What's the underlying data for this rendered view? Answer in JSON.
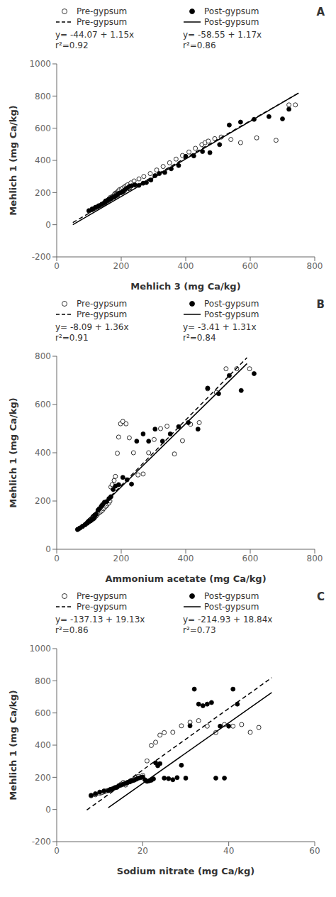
{
  "chart_data": [
    {
      "type": "scatter",
      "title": "A",
      "x_label": "Mehlich 3 (mg Ca/kg)",
      "y_label": "Mehlich 1 (mg Ca/kg)",
      "xlim": [
        0,
        800
      ],
      "ylim": [
        -200,
        1000
      ],
      "xticks": [
        0,
        200,
        400,
        600,
        800
      ],
      "yticks": [
        -200,
        0,
        200,
        400,
        600,
        800,
        1000
      ],
      "grid": false,
      "legend": "top",
      "annotations": [
        "y= -44.07 + 1.15x",
        "r²=0.92",
        "y= -58.55 + 1.17x",
        "r²=0.86"
      ],
      "series": [
        {
          "name": "Pre-gypsum",
          "type": "scatter",
          "marker": "open circle",
          "color": "black",
          "x": [
            100,
            110,
            115,
            120,
            125,
            130,
            135,
            140,
            145,
            150,
            150,
            155,
            155,
            160,
            160,
            162,
            165,
            165,
            170,
            172,
            175,
            178,
            180,
            180,
            182,
            185,
            188,
            190,
            192,
            195,
            200,
            205,
            210,
            215,
            220,
            230,
            240,
            255,
            270,
            290,
            310,
            330,
            350,
            370,
            390,
            410,
            430,
            450,
            460,
            470,
            490,
            510,
            540,
            570,
            620,
            680,
            720,
            740
          ],
          "values": [
            85,
            95,
            100,
            105,
            110,
            115,
            120,
            125,
            130,
            135,
            140,
            142,
            148,
            150,
            155,
            158,
            162,
            168,
            170,
            175,
            178,
            182,
            188,
            192,
            195,
            198,
            202,
            206,
            212,
            218,
            222,
            228,
            235,
            242,
            248,
            260,
            272,
            285,
            300,
            318,
            340,
            362,
            385,
            408,
            430,
            452,
            475,
            498,
            510,
            520,
            535,
            545,
            530,
            510,
            540,
            525,
            745,
            745
          ]
        },
        {
          "name": "Pre-gypsum",
          "type": "line",
          "line_style": "dashed",
          "color": "black",
          "x": [
            50,
            750
          ],
          "values": [
            13.43,
            818.43
          ]
        },
        {
          "name": "Post-gypsum",
          "type": "scatter",
          "marker": "filled circle",
          "color": "black",
          "x": [
            100,
            110,
            120,
            130,
            140,
            148,
            152,
            158,
            162,
            168,
            172,
            178,
            182,
            188,
            192,
            198,
            205,
            212,
            218,
            225,
            232,
            242,
            255,
            268,
            278,
            292,
            305,
            318,
            335,
            355,
            378,
            400,
            425,
            452,
            475,
            505,
            535,
            570,
            612,
            658,
            700,
            720
          ],
          "values": [
            88,
            98,
            108,
            118,
            128,
            138,
            148,
            152,
            158,
            162,
            168,
            172,
            178,
            188,
            195,
            198,
            208,
            218,
            228,
            238,
            242,
            248,
            245,
            258,
            262,
            278,
            305,
            318,
            325,
            348,
            368,
            425,
            428,
            455,
            448,
            498,
            620,
            638,
            655,
            672,
            658,
            718
          ]
        },
        {
          "name": "Post-gypsum",
          "type": "line",
          "line_style": "solid",
          "color": "black",
          "x": [
            50,
            750
          ],
          "values": [
            -0.05,
            818.95
          ]
        }
      ]
    },
    {
      "type": "scatter",
      "title": "B",
      "x_label": "Ammonium acetate (mg Ca/kg)",
      "y_label": "Mehlich 1 (mg Ca/kg)",
      "xlim": [
        0,
        800
      ],
      "ylim": [
        0,
        800
      ],
      "xticks": [
        0,
        200,
        400,
        600,
        800
      ],
      "yticks": [
        0,
        200,
        400,
        600,
        800
      ],
      "grid": false,
      "legend": "top",
      "annotations": [
        "y= -8.09 + 1.36x",
        "r²=0.91",
        "y= -3.41 + 1.31x",
        "r²=0.84"
      ],
      "series": [
        {
          "name": "Pre-gypsum",
          "type": "scatter",
          "marker": "open circle",
          "color": "black",
          "x": [
            65,
            72,
            80,
            88,
            95,
            100,
            105,
            110,
            115,
            118,
            122,
            125,
            128,
            132,
            135,
            138,
            142,
            145,
            148,
            152,
            155,
            158,
            162,
            165,
            168,
            172,
            178,
            182,
            188,
            192,
            198,
            205,
            215,
            225,
            238,
            252,
            268,
            285,
            302,
            322,
            342,
            365,
            390,
            415,
            442,
            468,
            495,
            525,
            558,
            598
          ],
          "values": [
            82,
            88,
            95,
            102,
            110,
            115,
            118,
            122,
            128,
            132,
            138,
            142,
            148,
            152,
            155,
            158,
            162,
            168,
            172,
            178,
            182,
            188,
            192,
            200,
            258,
            268,
            285,
            302,
            398,
            465,
            520,
            530,
            520,
            462,
            400,
            308,
            312,
            400,
            455,
            500,
            510,
            395,
            450,
            518,
            525,
            665,
            650,
            748,
            748,
            748
          ]
        },
        {
          "name": "Pre-gypsum",
          "type": "line",
          "line_style": "dashed",
          "color": "black",
          "x": [
            60,
            590
          ],
          "values": [
            73.51,
            794.31
          ]
        },
        {
          "name": "Post-gypsum",
          "type": "scatter",
          "marker": "filled circle",
          "color": "black",
          "x": [
            65,
            72,
            80,
            88,
            95,
            100,
            105,
            110,
            115,
            118,
            122,
            128,
            132,
            138,
            142,
            148,
            155,
            162,
            168,
            175,
            182,
            192,
            205,
            218,
            232,
            248,
            268,
            285,
            305,
            328,
            352,
            378,
            408,
            438,
            468,
            502,
            535,
            572,
            612
          ],
          "values": [
            82,
            88,
            95,
            102,
            108,
            115,
            118,
            125,
            128,
            138,
            145,
            162,
            168,
            178,
            185,
            195,
            198,
            210,
            218,
            248,
            262,
            268,
            298,
            288,
            270,
            448,
            478,
            448,
            498,
            448,
            478,
            508,
            525,
            498,
            668,
            645,
            720,
            658,
            728
          ]
        },
        {
          "name": "Post-gypsum",
          "type": "line",
          "line_style": "solid",
          "color": "black",
          "x": [
            60,
            590
          ],
          "values": [
            75.19,
            769.49
          ]
        }
      ]
    },
    {
      "type": "scatter",
      "title": "C",
      "x_label": "Sodium nitrate (mg Ca/kg)",
      "y_label": "Mehlich 1 (mg Ca/kg)",
      "xlim": [
        0,
        60
      ],
      "ylim": [
        -200,
        1000
      ],
      "xticks": [
        0,
        20,
        40,
        60
      ],
      "yticks": [
        -200,
        0,
        200,
        400,
        600,
        800,
        1000
      ],
      "grid": false,
      "legend": "top",
      "annotations": [
        "y= -137.13 + 19.13x",
        "r²=0.86",
        "y= -214.93 + 18.84x",
        "r²=0.73"
      ],
      "series": [
        {
          "name": "Pre-gypsum",
          "type": "scatter",
          "marker": "open circle",
          "color": "black",
          "x": [
            8,
            9,
            10,
            10.5,
            11,
            11.5,
            12,
            12.5,
            13,
            13.5,
            14,
            14.5,
            15,
            15.5,
            16,
            16.5,
            17,
            17.5,
            18,
            18.5,
            19,
            20,
            21,
            22,
            23,
            24,
            25,
            27,
            29,
            31,
            33,
            35,
            37,
            39,
            41,
            43,
            45,
            47
          ],
          "values": [
            85,
            92,
            100,
            105,
            110,
            115,
            118,
            122,
            128,
            135,
            140,
            148,
            158,
            168,
            152,
            168,
            172,
            182,
            188,
            198,
            205,
            212,
            302,
            398,
            418,
            462,
            478,
            480,
            520,
            542,
            552,
            518,
            478,
            528,
            518,
            528,
            480,
            510
          ]
        },
        {
          "name": "Pre-gypsum",
          "type": "line",
          "line_style": "dashed",
          "color": "black",
          "x": [
            7,
            50
          ],
          "values": [
            -3.22,
            819.37
          ]
        },
        {
          "name": "Post-gypsum",
          "type": "scatter",
          "marker": "filled circle",
          "color": "black",
          "x": [
            8,
            9,
            10,
            11,
            12,
            12.5,
            13,
            13.5,
            14,
            14.5,
            15,
            15.5,
            16,
            16.5,
            17,
            17.5,
            18,
            18.5,
            19,
            19.5,
            20,
            20.5,
            21,
            21.5,
            22,
            22.5,
            23,
            23.5,
            24,
            25,
            26,
            27,
            28,
            29,
            30,
            31,
            32,
            33,
            34,
            35,
            36,
            37,
            38,
            39,
            40,
            41,
            42
          ],
          "values": [
            88,
            98,
            108,
            115,
            118,
            125,
            128,
            135,
            138,
            148,
            152,
            158,
            162,
            168,
            172,
            178,
            182,
            188,
            195,
            198,
            202,
            185,
            175,
            178,
            182,
            190,
            290,
            272,
            285,
            195,
            192,
            185,
            198,
            275,
            195,
            520,
            748,
            655,
            645,
            655,
            665,
            195,
            518,
            195,
            518,
            748,
            655
          ]
        },
        {
          "name": "Post-gypsum",
          "type": "line",
          "line_style": "solid",
          "color": "black",
          "x": [
            12,
            50
          ],
          "values": [
            11.15,
            727.07
          ]
        }
      ]
    }
  ]
}
